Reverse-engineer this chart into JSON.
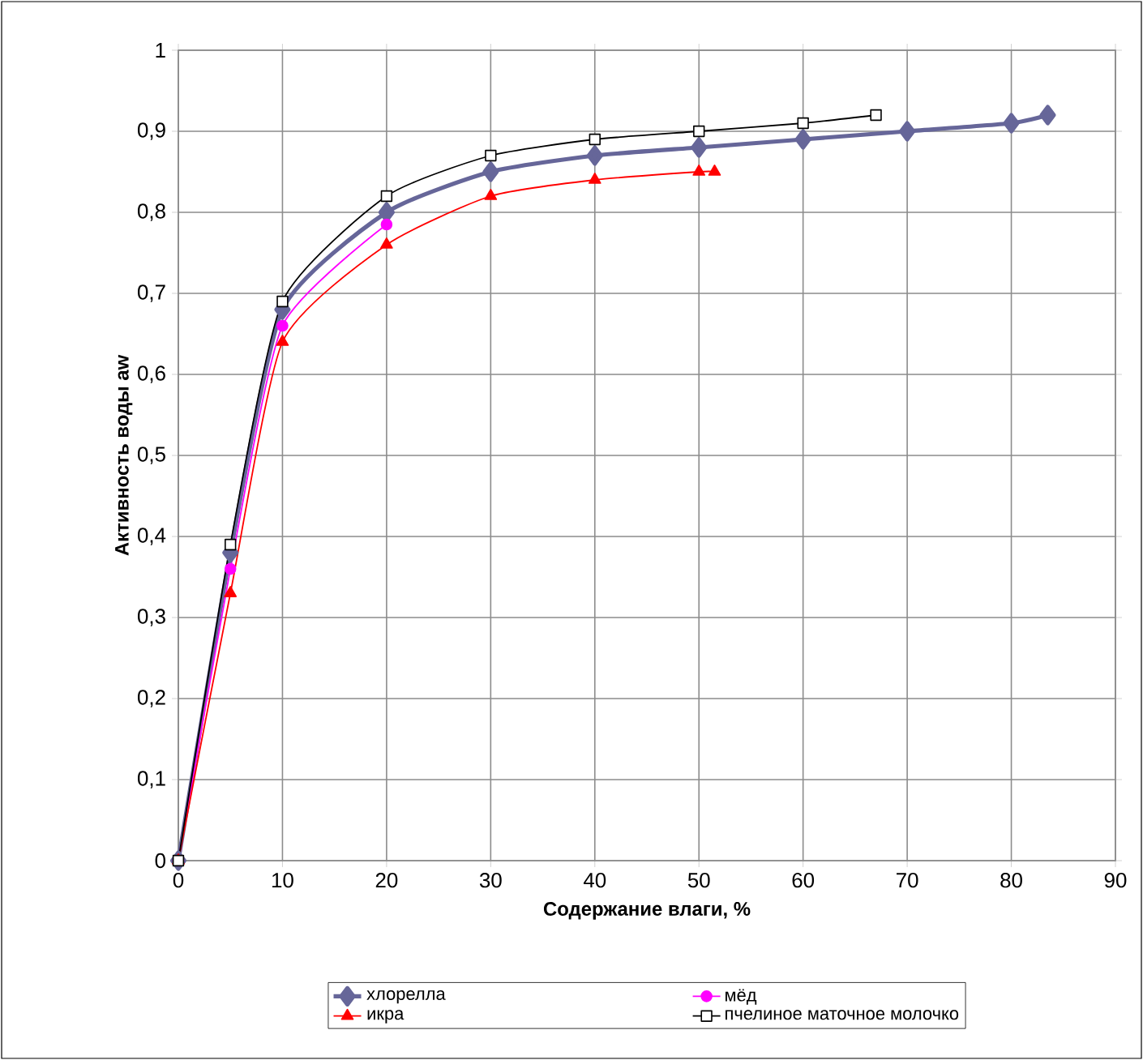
{
  "chart_data": {
    "type": "line",
    "xlabel": "Содержание влаги, %",
    "ylabel": "Активность воды aw",
    "xlim": [
      0,
      90
    ],
    "ylim": [
      0,
      1
    ],
    "xticks": [
      0,
      10,
      20,
      30,
      40,
      50,
      60,
      70,
      80,
      90
    ],
    "yticks": [
      0,
      {
        "value": 0.1,
        "label": "0,1"
      },
      {
        "value": 0.2,
        "label": "0,2"
      },
      {
        "value": 0.3,
        "label": "0,3"
      },
      {
        "value": 0.4,
        "label": "0,4"
      },
      {
        "value": 0.5,
        "label": "0,5"
      },
      {
        "value": 0.6,
        "label": "0,6"
      },
      {
        "value": 0.7,
        "label": "0,7"
      },
      {
        "value": 0.8,
        "label": "0,8"
      },
      {
        "value": 0.9,
        "label": "0,9"
      },
      1
    ],
    "grid": true,
    "legend": "bottom",
    "series": [
      {
        "name": "хлорелла",
        "color": "#666699",
        "marker": "diamond",
        "x": [
          0,
          5,
          10,
          20,
          30,
          40,
          50,
          60,
          70,
          80,
          83.5
        ],
        "values": [
          0,
          0.38,
          0.68,
          0.8,
          0.85,
          0.87,
          0.88,
          0.89,
          0.9,
          0.91,
          0.92
        ]
      },
      {
        "name": "мёд",
        "color": "#ff00ff",
        "marker": "circle",
        "x": [
          0,
          5,
          10,
          20
        ],
        "values": [
          0,
          0.36,
          0.66,
          0.785
        ]
      },
      {
        "name": "икра",
        "color": "#ff0000",
        "marker": "triangle",
        "x": [
          0,
          5,
          10,
          20,
          30,
          40,
          50,
          51.5
        ],
        "values": [
          0,
          0.33,
          0.64,
          0.76,
          0.82,
          0.84,
          0.85,
          0.85
        ]
      },
      {
        "name": "пчелиное маточное молочко",
        "color": "#000000",
        "marker": "square",
        "x": [
          0,
          5,
          10,
          20,
          30,
          40,
          50,
          60,
          67
        ],
        "values": [
          0,
          0.39,
          0.69,
          0.82,
          0.87,
          0.89,
          0.9,
          0.91,
          0.92
        ]
      }
    ]
  }
}
